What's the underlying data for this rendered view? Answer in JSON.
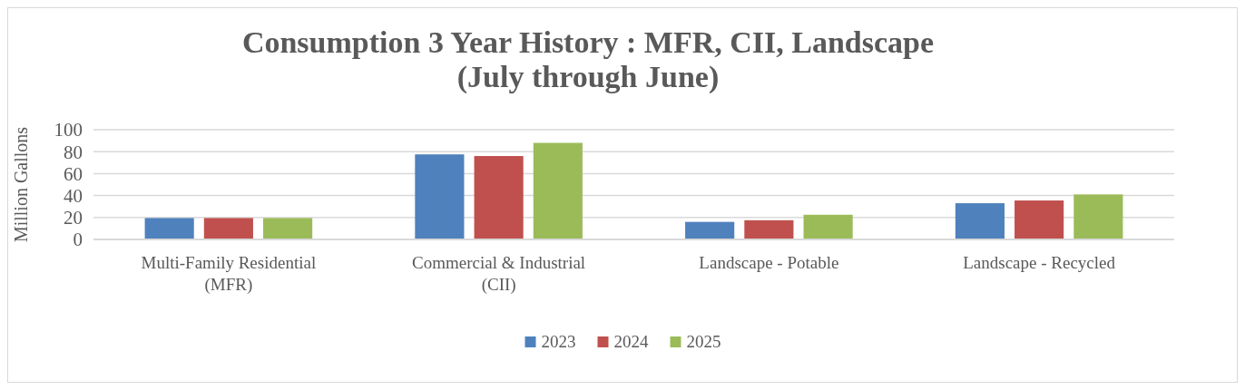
{
  "chart_data": {
    "type": "bar",
    "title": "Consumption 3 Year History : MFR, CII, Landscape\n(July through June)",
    "ylabel": "Million Gallons",
    "categories": [
      "Multi-Family Residential (MFR)",
      "Commercial & Industrial (CII)",
      "Landscape - Potable",
      "Landscape - Recycled"
    ],
    "series": [
      {
        "name": "2023",
        "color": "#4f81bd",
        "values": [
          19.5,
          77.5,
          16,
          33
        ]
      },
      {
        "name": "2024",
        "color": "#c0504d",
        "values": [
          19.5,
          76,
          17.5,
          35.5
        ]
      },
      {
        "name": "2025",
        "color": "#9bbb59",
        "values": [
          19.5,
          88,
          22.5,
          41
        ]
      }
    ],
    "ylim": [
      0,
      100
    ],
    "yticks": [
      0,
      20,
      40,
      60,
      80,
      100
    ],
    "grid": "y",
    "legend": "bottom"
  }
}
